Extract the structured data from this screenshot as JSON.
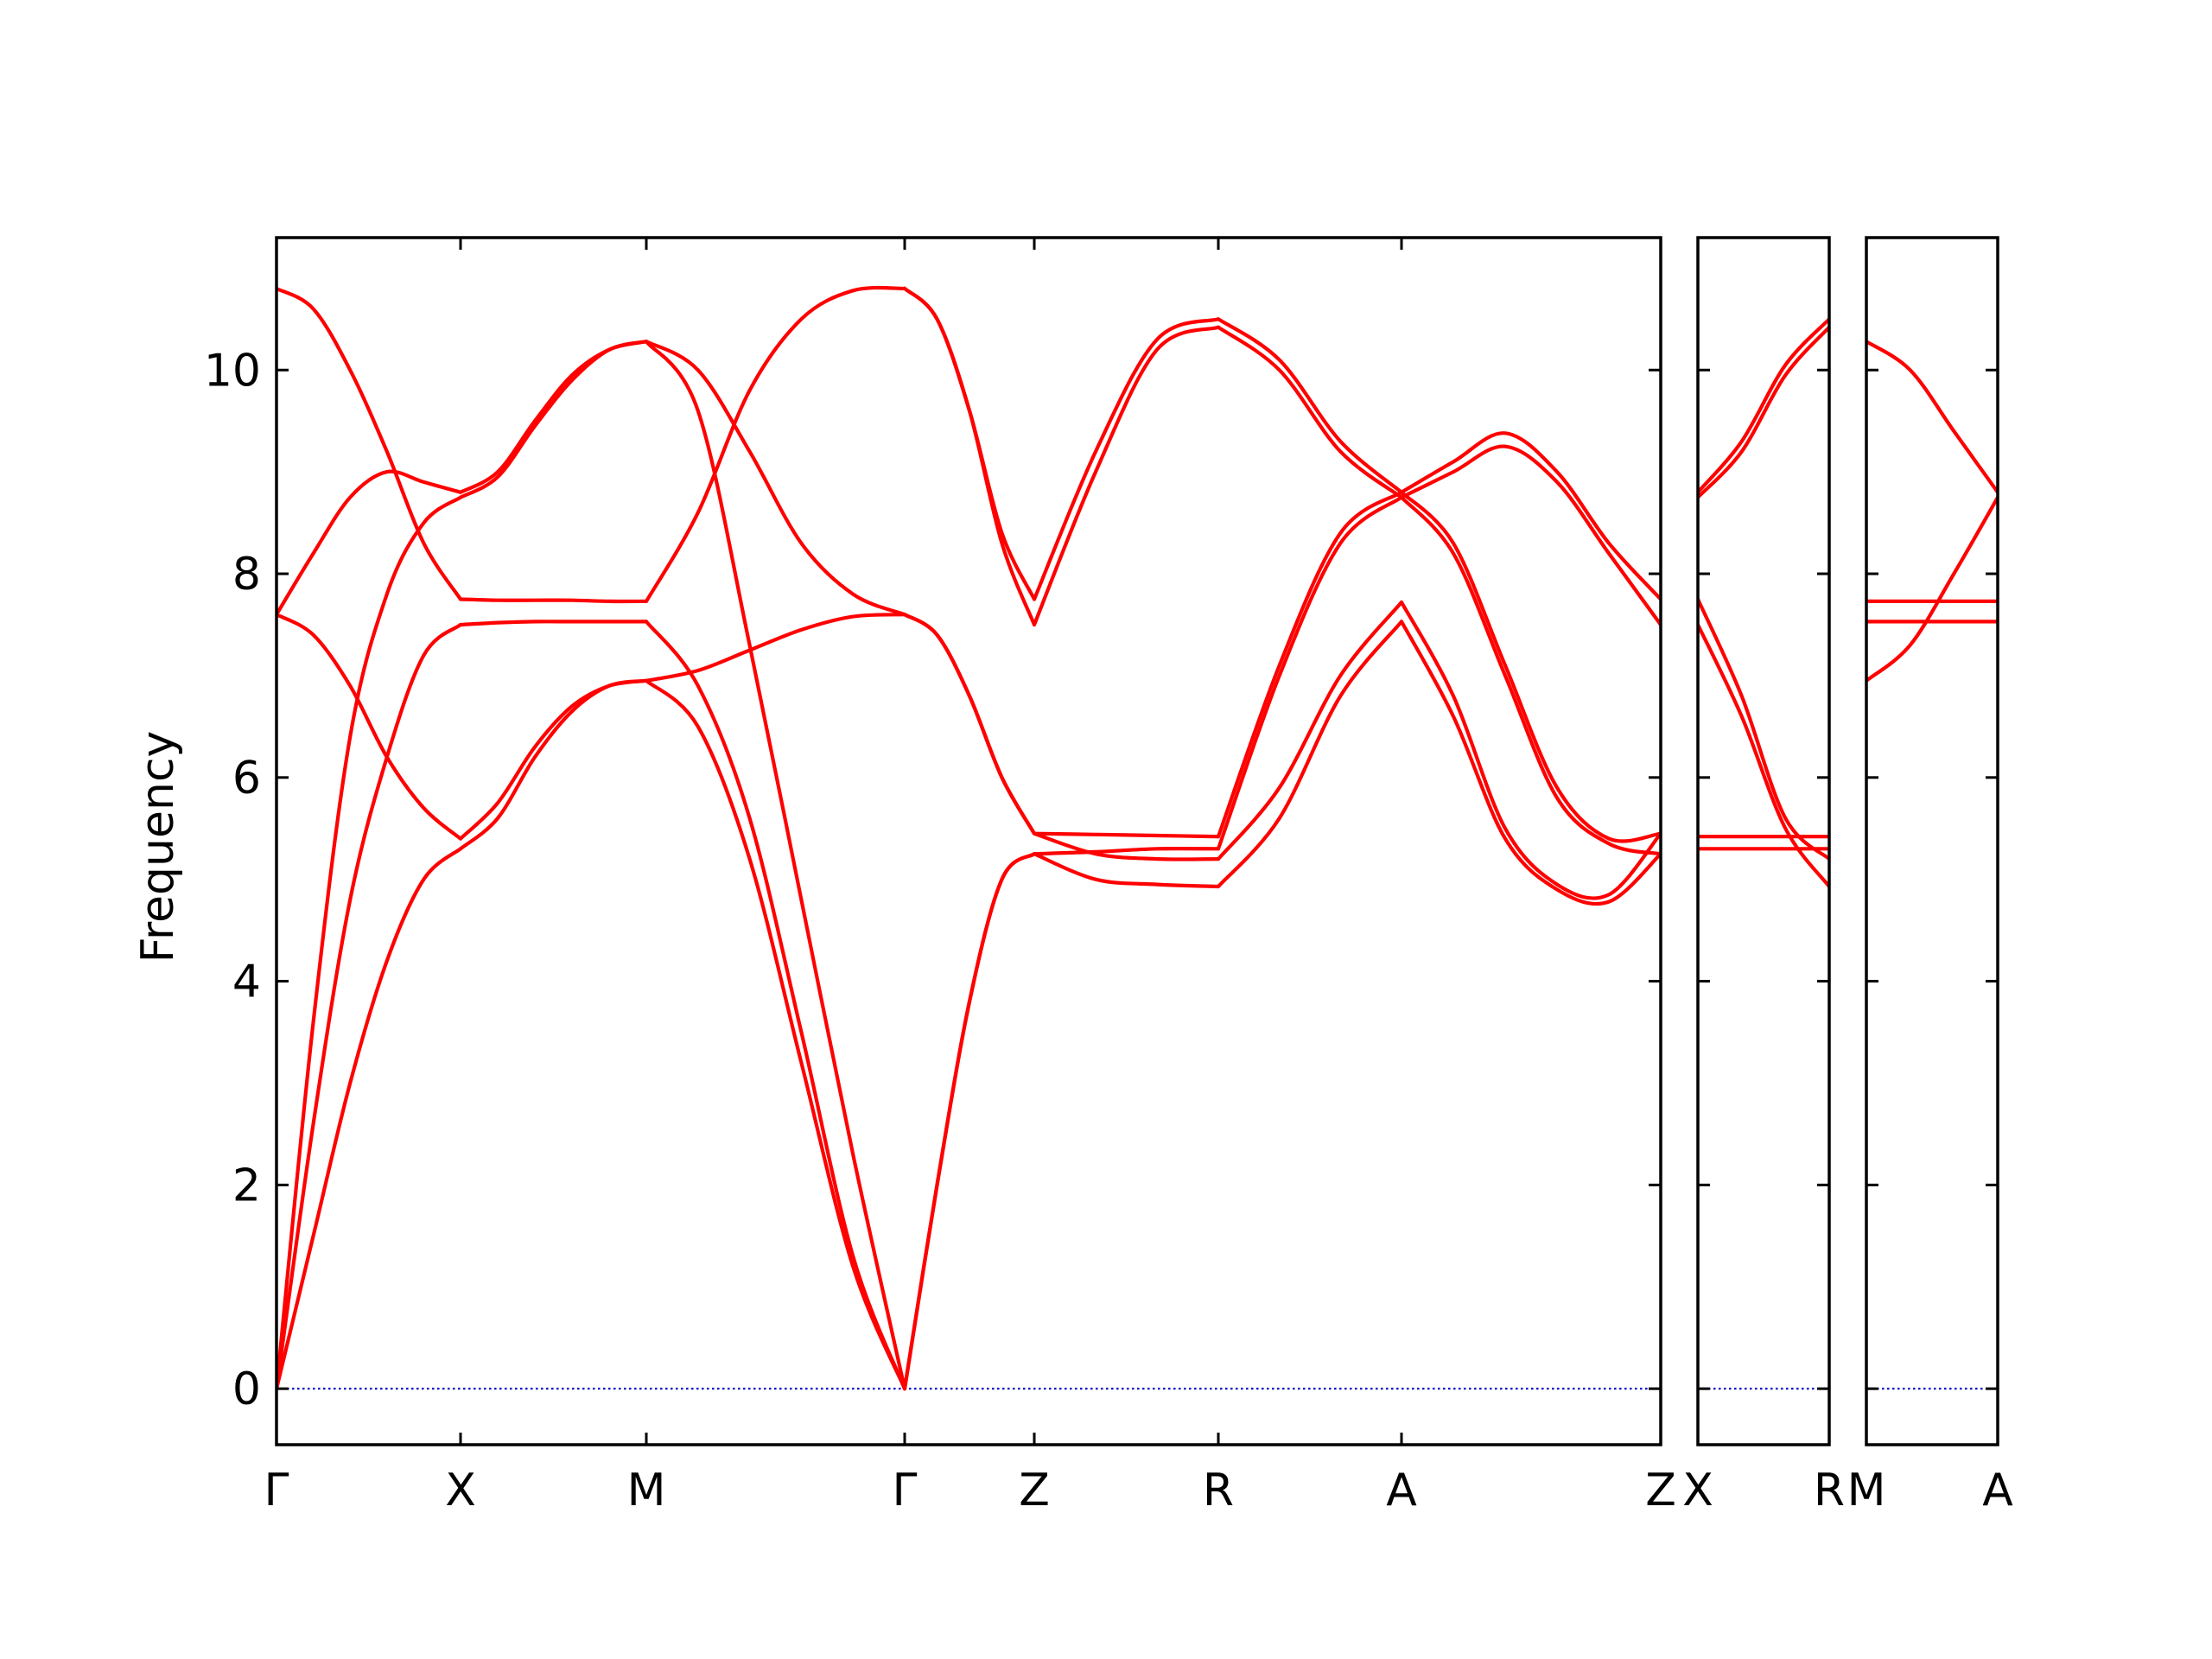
{
  "chart_data": {
    "type": "line",
    "title": "",
    "xlabel": "",
    "ylabel": "Frequency",
    "ylim": [
      -0.55,
      11.3
    ],
    "y_ticks": [
      0,
      2,
      4,
      6,
      8,
      10
    ],
    "colors": {
      "bands": "#ff0000",
      "zero_line": "#0000cc",
      "frame": "#000000"
    },
    "zero_line": {
      "y": 0,
      "style": "dotted"
    },
    "panels": [
      {
        "segments": [
          {
            "from": "Γ",
            "to": "X",
            "bands": [
              [
                0,
                1.5,
                3.0,
                4.2,
                5.0,
                5.3
              ],
              [
                0,
                2.6,
                4.8,
                6.2,
                7.2,
                7.5
              ],
              [
                0,
                3.6,
                6.4,
                7.8,
                8.5,
                8.75
              ],
              [
                7.6,
                7.4,
                6.9,
                6.2,
                5.7,
                5.4
              ],
              [
                7.6,
                8.2,
                8.75,
                9.0,
                8.9,
                8.8
              ],
              [
                10.8,
                10.6,
                10.0,
                9.2,
                8.3,
                7.75
              ]
            ]
          },
          {
            "from": "X",
            "to": "M",
            "bands": [
              [
                5.3,
                5.6,
                6.2,
                6.65,
                6.9,
                6.95
              ],
              [
                5.4,
                5.75,
                6.3,
                6.7,
                6.9,
                6.95
              ],
              [
                7.5,
                7.52,
                7.53,
                7.53,
                7.53,
                7.53
              ],
              [
                7.75,
                7.74,
                7.74,
                7.74,
                7.73,
                7.73
              ],
              [
                8.75,
                8.95,
                9.45,
                9.9,
                10.2,
                10.28
              ],
              [
                8.8,
                9.0,
                9.5,
                9.95,
                10.2,
                10.28
              ]
            ]
          },
          {
            "from": "M",
            "to": "Γ",
            "bands": [
              [
                6.95,
                6.5,
                5.2,
                3.2,
                1.2,
                0
              ],
              [
                7.53,
                6.9,
                5.6,
                3.5,
                1.3,
                0
              ],
              [
                10.28,
                9.6,
                7.3,
                4.8,
                2.3,
                0
              ],
              [
                6.95,
                7.05,
                7.25,
                7.45,
                7.58,
                7.6
              ],
              [
                7.73,
                8.6,
                9.8,
                10.5,
                10.78,
                10.8
              ],
              [
                10.28,
                10.0,
                9.2,
                8.3,
                7.8,
                7.6
              ]
            ]
          },
          {
            "from": "Γ",
            "to": "Z",
            "bands": [
              [
                0,
                2.0,
                3.8,
                5.0,
                5.25
              ],
              [
                0,
                2.0,
                3.8,
                5.0,
                5.25
              ],
              [
                10.8,
                10.5,
                9.6,
                8.3,
                7.5
              ],
              [
                10.8,
                10.5,
                9.6,
                8.4,
                7.75
              ],
              [
                7.6,
                7.4,
                6.8,
                6.0,
                5.45
              ],
              [
                7.6,
                7.4,
                6.8,
                6.0,
                5.45
              ]
            ]
          },
          {
            "from": "Z",
            "to": "R",
            "bands": [
              [
                5.25,
                5.0,
                4.95,
                4.93
              ],
              [
                5.45,
                5.25,
                5.2,
                5.2
              ],
              [
                5.25,
                5.27,
                5.3,
                5.3
              ],
              [
                5.45,
                5.44,
                5.43,
                5.42
              ],
              [
                7.5,
                9.0,
                10.2,
                10.42
              ],
              [
                7.75,
                9.2,
                10.3,
                10.5
              ]
            ]
          },
          {
            "from": "R",
            "to": "A",
            "bands": [
              [
                4.93,
                5.6,
                6.8,
                7.53
              ],
              [
                5.2,
                5.9,
                7.0,
                7.72
              ],
              [
                5.3,
                7.0,
                8.3,
                8.75
              ],
              [
                5.42,
                7.1,
                8.4,
                8.8
              ],
              [
                10.42,
                10.0,
                9.2,
                8.75
              ],
              [
                10.5,
                10.1,
                9.3,
                8.8
              ]
            ]
          },
          {
            "from": "A",
            "to": "Z",
            "bands": [
              [
                7.53,
                6.6,
                5.4,
                4.9,
                4.78,
                5.25
              ],
              [
                7.72,
                6.8,
                5.5,
                4.95,
                4.85,
                5.45
              ],
              [
                8.75,
                8.2,
                7.0,
                5.8,
                5.35,
                5.25
              ],
              [
                8.8,
                8.3,
                7.1,
                5.9,
                5.4,
                5.45
              ],
              [
                8.75,
                9.0,
                9.25,
                8.9,
                8.2,
                7.5
              ],
              [
                8.8,
                9.1,
                9.38,
                9.0,
                8.3,
                7.75
              ]
            ]
          }
        ]
      },
      {
        "segments": [
          {
            "from": "X",
            "to": "R",
            "bands": [
              [
                5.3,
                5.3,
                5.3,
                5.3
              ],
              [
                5.42,
                5.42,
                5.42,
                5.42
              ],
              [
                7.5,
                6.6,
                5.5,
                4.93
              ],
              [
                7.75,
                6.8,
                5.6,
                5.2
              ],
              [
                8.75,
                9.2,
                9.95,
                10.42
              ],
              [
                8.8,
                9.3,
                10.05,
                10.5
              ]
            ]
          }
        ]
      },
      {
        "segments": [
          {
            "from": "M",
            "to": "A",
            "bands": [
              [
                6.95,
                7.3,
                8.0,
                8.75
              ],
              [
                7.53,
                7.53,
                7.53,
                7.53
              ],
              [
                7.73,
                7.73,
                7.73,
                7.73
              ],
              [
                10.28,
                10.0,
                9.4,
                8.8
              ]
            ]
          }
        ]
      }
    ]
  }
}
